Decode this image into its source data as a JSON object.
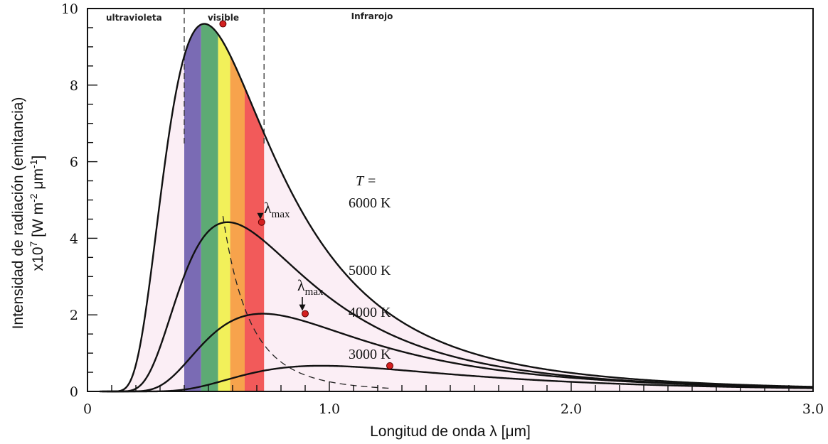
{
  "chart_data": {
    "type": "line",
    "xlabel": "Longitud de onda λ [μm]",
    "ylabel_line1": "Intensidad de radiación (emitancia)",
    "ylabel_line2_parts": [
      "x10",
      "7",
      " [W m",
      "-2",
      "  μm",
      "-1",
      "]"
    ],
    "xlim": [
      0,
      3.0
    ],
    "ylim": [
      0,
      10
    ],
    "x_ticks": [
      0,
      1.0,
      2.0,
      3.0
    ],
    "x_tick_labels": [
      "0",
      "1.0",
      "2.0",
      "3.0"
    ],
    "y_ticks": [
      0,
      2,
      4,
      6,
      8,
      10
    ],
    "y_tick_labels": [
      "0",
      "2",
      "4",
      "6",
      "8",
      "10"
    ],
    "grid": false,
    "regions": [
      {
        "name": "ultravioleta",
        "x_range": [
          0,
          0.4
        ]
      },
      {
        "name": "visible",
        "x_range": [
          0.4,
          0.73
        ]
      },
      {
        "name": "Infrarojo",
        "x_range": [
          0.73,
          3.0
        ]
      }
    ],
    "visible_bands": [
      {
        "x_range": [
          0.4,
          0.47
        ],
        "color": "#7a6bb4"
      },
      {
        "x_range": [
          0.47,
          0.54
        ],
        "color": "#5daa74"
      },
      {
        "x_range": [
          0.54,
          0.59
        ],
        "color": "#f2f05a"
      },
      {
        "x_range": [
          0.59,
          0.65
        ],
        "color": "#f7a34c"
      },
      {
        "x_range": [
          0.65,
          0.73
        ],
        "color": "#f25a5a"
      }
    ],
    "fill_color": "#fbeef5",
    "curve_color": "#111111",
    "peak_color": "#d32020",
    "temperature_header": "T =",
    "series": [
      {
        "name": "6000 K",
        "temperature": 6000,
        "peak": [
          0.56,
          9.6
        ]
      },
      {
        "name": "5000 K",
        "temperature": 5000,
        "peak": [
          0.72,
          4.42
        ]
      },
      {
        "name": "4000 K",
        "temperature": 4000,
        "peak": [
          0.9,
          2.03
        ]
      },
      {
        "name": "3000 K",
        "temperature": 3000,
        "peak": [
          1.25,
          0.67
        ]
      }
    ],
    "wien_annotation": {
      "symbol": "λ",
      "subscript": "max"
    }
  }
}
